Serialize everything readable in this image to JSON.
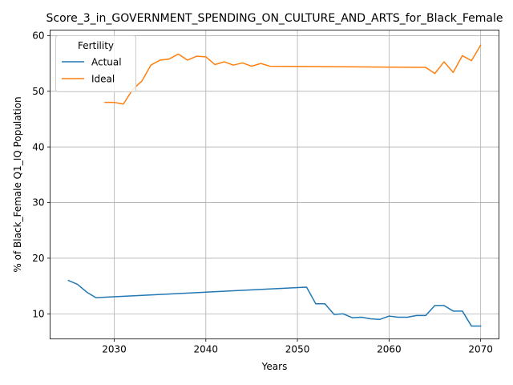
{
  "chart_data": {
    "type": "line",
    "title": "Score_3_in_GOVERNMENT_SPENDING_ON_CULTURE_AND_ARTS_for_Black_Female",
    "xlabel": "Years",
    "ylabel": "% of Black_Female Q1_IQ Population",
    "xlim": [
      2023,
      2072
    ],
    "ylim": [
      5.5,
      61
    ],
    "xticks": [
      2030,
      2040,
      2050,
      2060,
      2070
    ],
    "yticks": [
      10,
      20,
      30,
      40,
      50,
      60
    ],
    "grid": true,
    "legend": {
      "title": "Fertility",
      "position": "top-left"
    },
    "series": [
      {
        "name": "Actual",
        "color": "#1f77b4",
        "x": [
          2025,
          2026,
          2027,
          2028,
          2051,
          2052,
          2053,
          2054,
          2055,
          2056,
          2057,
          2058,
          2059,
          2060,
          2061,
          2062,
          2063,
          2064,
          2065,
          2066,
          2067,
          2068,
          2069,
          2070
        ],
        "y": [
          16.0,
          15.3,
          13.9,
          12.9,
          14.8,
          11.8,
          11.8,
          9.9,
          10.0,
          9.3,
          9.4,
          9.1,
          9.0,
          9.6,
          9.4,
          9.4,
          9.7,
          9.7,
          11.5,
          11.5,
          10.5,
          10.5,
          7.8,
          7.8
        ]
      },
      {
        "name": "Ideal",
        "color": "#ff7f0e",
        "x": [
          2029,
          2030,
          2031,
          2032,
          2033,
          2034,
          2035,
          2036,
          2037,
          2038,
          2039,
          2040,
          2041,
          2042,
          2043,
          2044,
          2045,
          2046,
          2047,
          2064,
          2065,
          2066,
          2067,
          2068,
          2069,
          2070
        ],
        "y": [
          48.0,
          48.0,
          47.7,
          50.3,
          51.8,
          54.7,
          55.6,
          55.8,
          56.7,
          55.6,
          56.3,
          56.2,
          54.8,
          55.3,
          54.7,
          55.1,
          54.5,
          55.0,
          54.5,
          54.3,
          53.2,
          55.3,
          53.4,
          56.4,
          55.5,
          58.3
        ]
      }
    ]
  }
}
